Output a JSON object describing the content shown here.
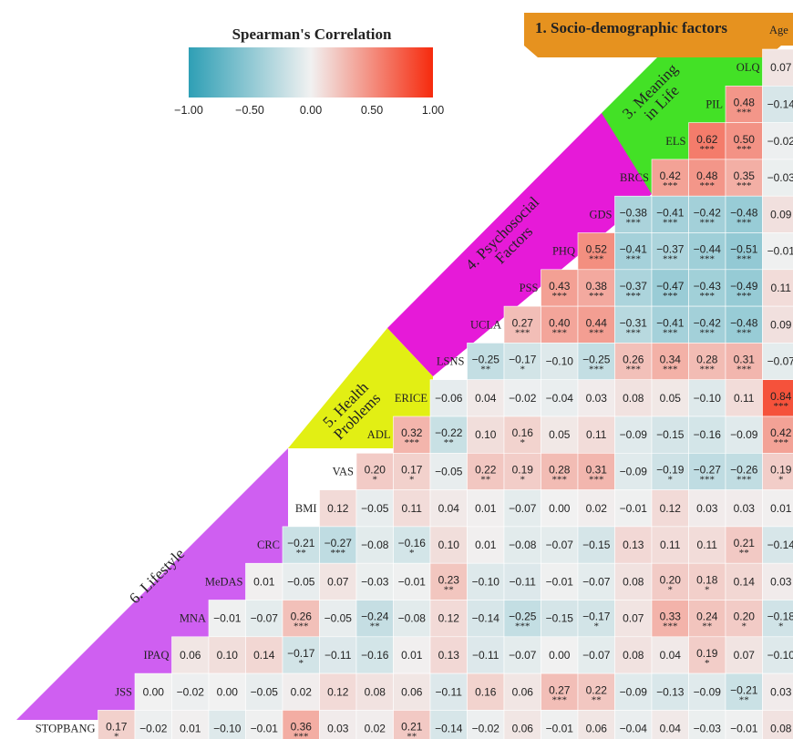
{
  "legend": {
    "title": "Spearman's Correlation",
    "ticks": [
      "−1.00",
      "−0.50",
      "0.00",
      "0.50",
      "1.00"
    ],
    "tick_values": [
      -1,
      -0.5,
      0,
      0.5,
      1
    ],
    "colors": {
      "neg": "#2e9fb5",
      "zero": "#f1f1f1",
      "pos": "#f62a0d"
    }
  },
  "groups": {
    "g1": {
      "label": "1. Socio-demographic factors",
      "color": "#e6921f"
    },
    "g3": {
      "label": "3. Meaning in Life",
      "color": "#43e126"
    },
    "g4": {
      "label": "4. Psychosocial Factors",
      "color": "#e61ad8"
    },
    "g5": {
      "label": "5. Health Problems",
      "color": "#e2ef14"
    },
    "g6": {
      "label": "6. Lifestyle",
      "color": "#cf5ff1"
    }
  },
  "column_header_age": "Age",
  "chart_data": {
    "type": "heatmap",
    "title": "Spearman's Correlation",
    "variables": [
      "OLQ",
      "PIL",
      "ELS",
      "BRCS",
      "GDS",
      "PHQ",
      "PSS",
      "UCLA",
      "LSNS",
      "ERICE",
      "ADL",
      "VAS",
      "BMI",
      "CRC",
      "MeDAS",
      "MNA",
      "IPAQ",
      "JSS",
      "STOPBANG"
    ],
    "columns": [
      "STOPBANG",
      "JSS",
      "IPAQ",
      "MNA",
      "MeDAS",
      "CRC",
      "BMI",
      "VAS",
      "ADL",
      "ERICE",
      "LSNS",
      "UCLA",
      "PSS",
      "PHQ",
      "GDS",
      "BRCS",
      "ELS",
      "PIL",
      "OLQ",
      "Age"
    ],
    "rows": [
      {
        "label": "OLQ",
        "values": [
          "0.07"
        ],
        "stars": [
          ""
        ]
      },
      {
        "label": "PIL",
        "values": [
          "0.48",
          "−0.14"
        ],
        "stars": [
          "***",
          ""
        ]
      },
      {
        "label": "ELS",
        "values": [
          "0.62",
          "0.50",
          "−0.02"
        ],
        "stars": [
          "***",
          "***",
          ""
        ]
      },
      {
        "label": "BRCS",
        "values": [
          "0.42",
          "0.48",
          "0.35",
          "−0.03"
        ],
        "stars": [
          "***",
          "***",
          "***",
          ""
        ]
      },
      {
        "label": "GDS",
        "values": [
          "−0.38",
          "−0.41",
          "−0.42",
          "−0.48",
          "0.09"
        ],
        "stars": [
          "***",
          "***",
          "***",
          "***",
          ""
        ]
      },
      {
        "label": "PHQ",
        "values": [
          "0.52",
          "−0.41",
          "−0.37",
          "−0.44",
          "−0.51",
          "−0.01"
        ],
        "stars": [
          "***",
          "***",
          "***",
          "***",
          "***",
          ""
        ]
      },
      {
        "label": "PSS",
        "values": [
          "0.43",
          "0.38",
          "−0.37",
          "−0.47",
          "−0.43",
          "−0.49",
          "0.11"
        ],
        "stars": [
          "***",
          "***",
          "***",
          "***",
          "***",
          "***",
          ""
        ]
      },
      {
        "label": "UCLA",
        "values": [
          "0.27",
          "0.40",
          "0.44",
          "−0.31",
          "−0.41",
          "−0.42",
          "−0.48",
          "0.09"
        ],
        "stars": [
          "***",
          "***",
          "***",
          "***",
          "***",
          "***",
          "***",
          ""
        ]
      },
      {
        "label": "LSNS",
        "values": [
          "−0.25",
          "−0.17",
          "−0.10",
          "−0.25",
          "0.26",
          "0.34",
          "0.28",
          "0.31",
          "−0.07"
        ],
        "stars": [
          "**",
          "*",
          "",
          "***",
          "***",
          "***",
          "***",
          "***",
          ""
        ]
      },
      {
        "label": "ERICE",
        "values": [
          "−0.06",
          "0.04",
          "−0.02",
          "−0.04",
          "0.03",
          "0.08",
          "0.05",
          "−0.10",
          "0.11",
          "0.84"
        ],
        "stars": [
          "",
          "",
          "",
          "",
          "",
          "",
          "",
          "",
          "",
          "***"
        ]
      },
      {
        "label": "ADL",
        "values": [
          "0.32",
          "−0.22",
          "0.10",
          "0.16",
          "0.05",
          "0.11",
          "−0.09",
          "−0.15",
          "−0.16",
          "−0.09",
          "0.42"
        ],
        "stars": [
          "***",
          "**",
          "",
          "*",
          "",
          "",
          "",
          "",
          "",
          "",
          "***"
        ]
      },
      {
        "label": "VAS",
        "values": [
          "0.20",
          "0.17",
          "−0.05",
          "0.22",
          "0.19",
          "0.28",
          "0.31",
          "−0.09",
          "−0.19",
          "−0.27",
          "−0.26",
          "0.19"
        ],
        "stars": [
          "*",
          "*",
          "",
          "**",
          "*",
          "***",
          "***",
          "",
          "*",
          "***",
          "***",
          "*"
        ]
      },
      {
        "label": "BMI",
        "values": [
          "0.12",
          "−0.05",
          "0.11",
          "0.04",
          "0.01",
          "−0.07",
          "0.00",
          "0.02",
          "−0.01",
          "0.12",
          "0.03",
          "0.03",
          "0.01"
        ],
        "stars": [
          "",
          "",
          "",
          "",
          "",
          "",
          "",
          "",
          "",
          "",
          "",
          "",
          ""
        ]
      },
      {
        "label": "CRC",
        "values": [
          "−0.21",
          "−0.27",
          "−0.08",
          "−0.16",
          "0.10",
          "0.01",
          "−0.08",
          "−0.07",
          "−0.15",
          "0.13",
          "0.11",
          "0.11",
          "0.21",
          "−0.14"
        ],
        "stars": [
          "**",
          "***",
          "",
          "*",
          "",
          "",
          "",
          "",
          "",
          "",
          "",
          "",
          "**",
          ""
        ]
      },
      {
        "label": "MeDAS",
        "values": [
          "0.01",
          "−0.05",
          "0.07",
          "−0.03",
          "−0.01",
          "0.23",
          "−0.10",
          "−0.11",
          "−0.01",
          "−0.07",
          "0.08",
          "0.20",
          "0.18",
          "0.14",
          "0.03"
        ],
        "stars": [
          "",
          "",
          "",
          "",
          "",
          "**",
          "",
          "",
          "",
          "",
          "",
          "*",
          "*",
          "",
          ""
        ]
      },
      {
        "label": "MNA",
        "values": [
          "−0.01",
          "−0.07",
          "0.26",
          "−0.05",
          "−0.24",
          "−0.08",
          "0.12",
          "−0.14",
          "−0.25",
          "−0.15",
          "−0.17",
          "0.07",
          "0.33",
          "0.24",
          "0.20",
          "−0.18"
        ],
        "stars": [
          "",
          "",
          "***",
          "",
          "**",
          "",
          "",
          "",
          "***",
          "",
          "*",
          "",
          "***",
          "**",
          "*",
          "*"
        ]
      },
      {
        "label": "IPAQ",
        "values": [
          "0.06",
          "0.10",
          "0.14",
          "−0.17",
          "−0.11",
          "−0.16",
          "0.01",
          "0.13",
          "−0.11",
          "−0.07",
          "0.00",
          "−0.07",
          "0.08",
          "0.04",
          "0.19",
          "0.07",
          "−0.10"
        ],
        "stars": [
          "",
          "",
          "",
          "*",
          "",
          "",
          "",
          "",
          "",
          "",
          "",
          "",
          "",
          "",
          "*",
          "",
          ""
        ]
      },
      {
        "label": "JSS",
        "values": [
          "0.00",
          "−0.02",
          "0.00",
          "−0.05",
          "0.02",
          "0.12",
          "0.08",
          "0.06",
          "−0.11",
          "0.16",
          "0.06",
          "0.27",
          "0.22",
          "−0.09",
          "−0.13",
          "−0.09",
          "−0.21",
          "0.03"
        ],
        "stars": [
          "",
          "",
          "",
          "",
          "",
          "",
          "",
          "",
          "",
          "",
          "",
          "***",
          "**",
          "",
          "",
          "",
          "**",
          ""
        ]
      },
      {
        "label": "STOPBANG",
        "values": [
          "0.17",
          "−0.02",
          "0.01",
          "−0.10",
          "−0.01",
          "0.36",
          "0.03",
          "0.02",
          "0.21",
          "−0.14",
          "−0.02",
          "0.06",
          "−0.01",
          "0.06",
          "−0.04",
          "0.04",
          "−0.03",
          "−0.01",
          "0.08"
        ],
        "stars": [
          "*",
          "",
          "",
          "",
          "",
          "***",
          "",
          "",
          "**",
          "",
          "",
          "",
          "",
          "",
          "",
          "",
          "",
          "",
          ""
        ]
      }
    ]
  }
}
